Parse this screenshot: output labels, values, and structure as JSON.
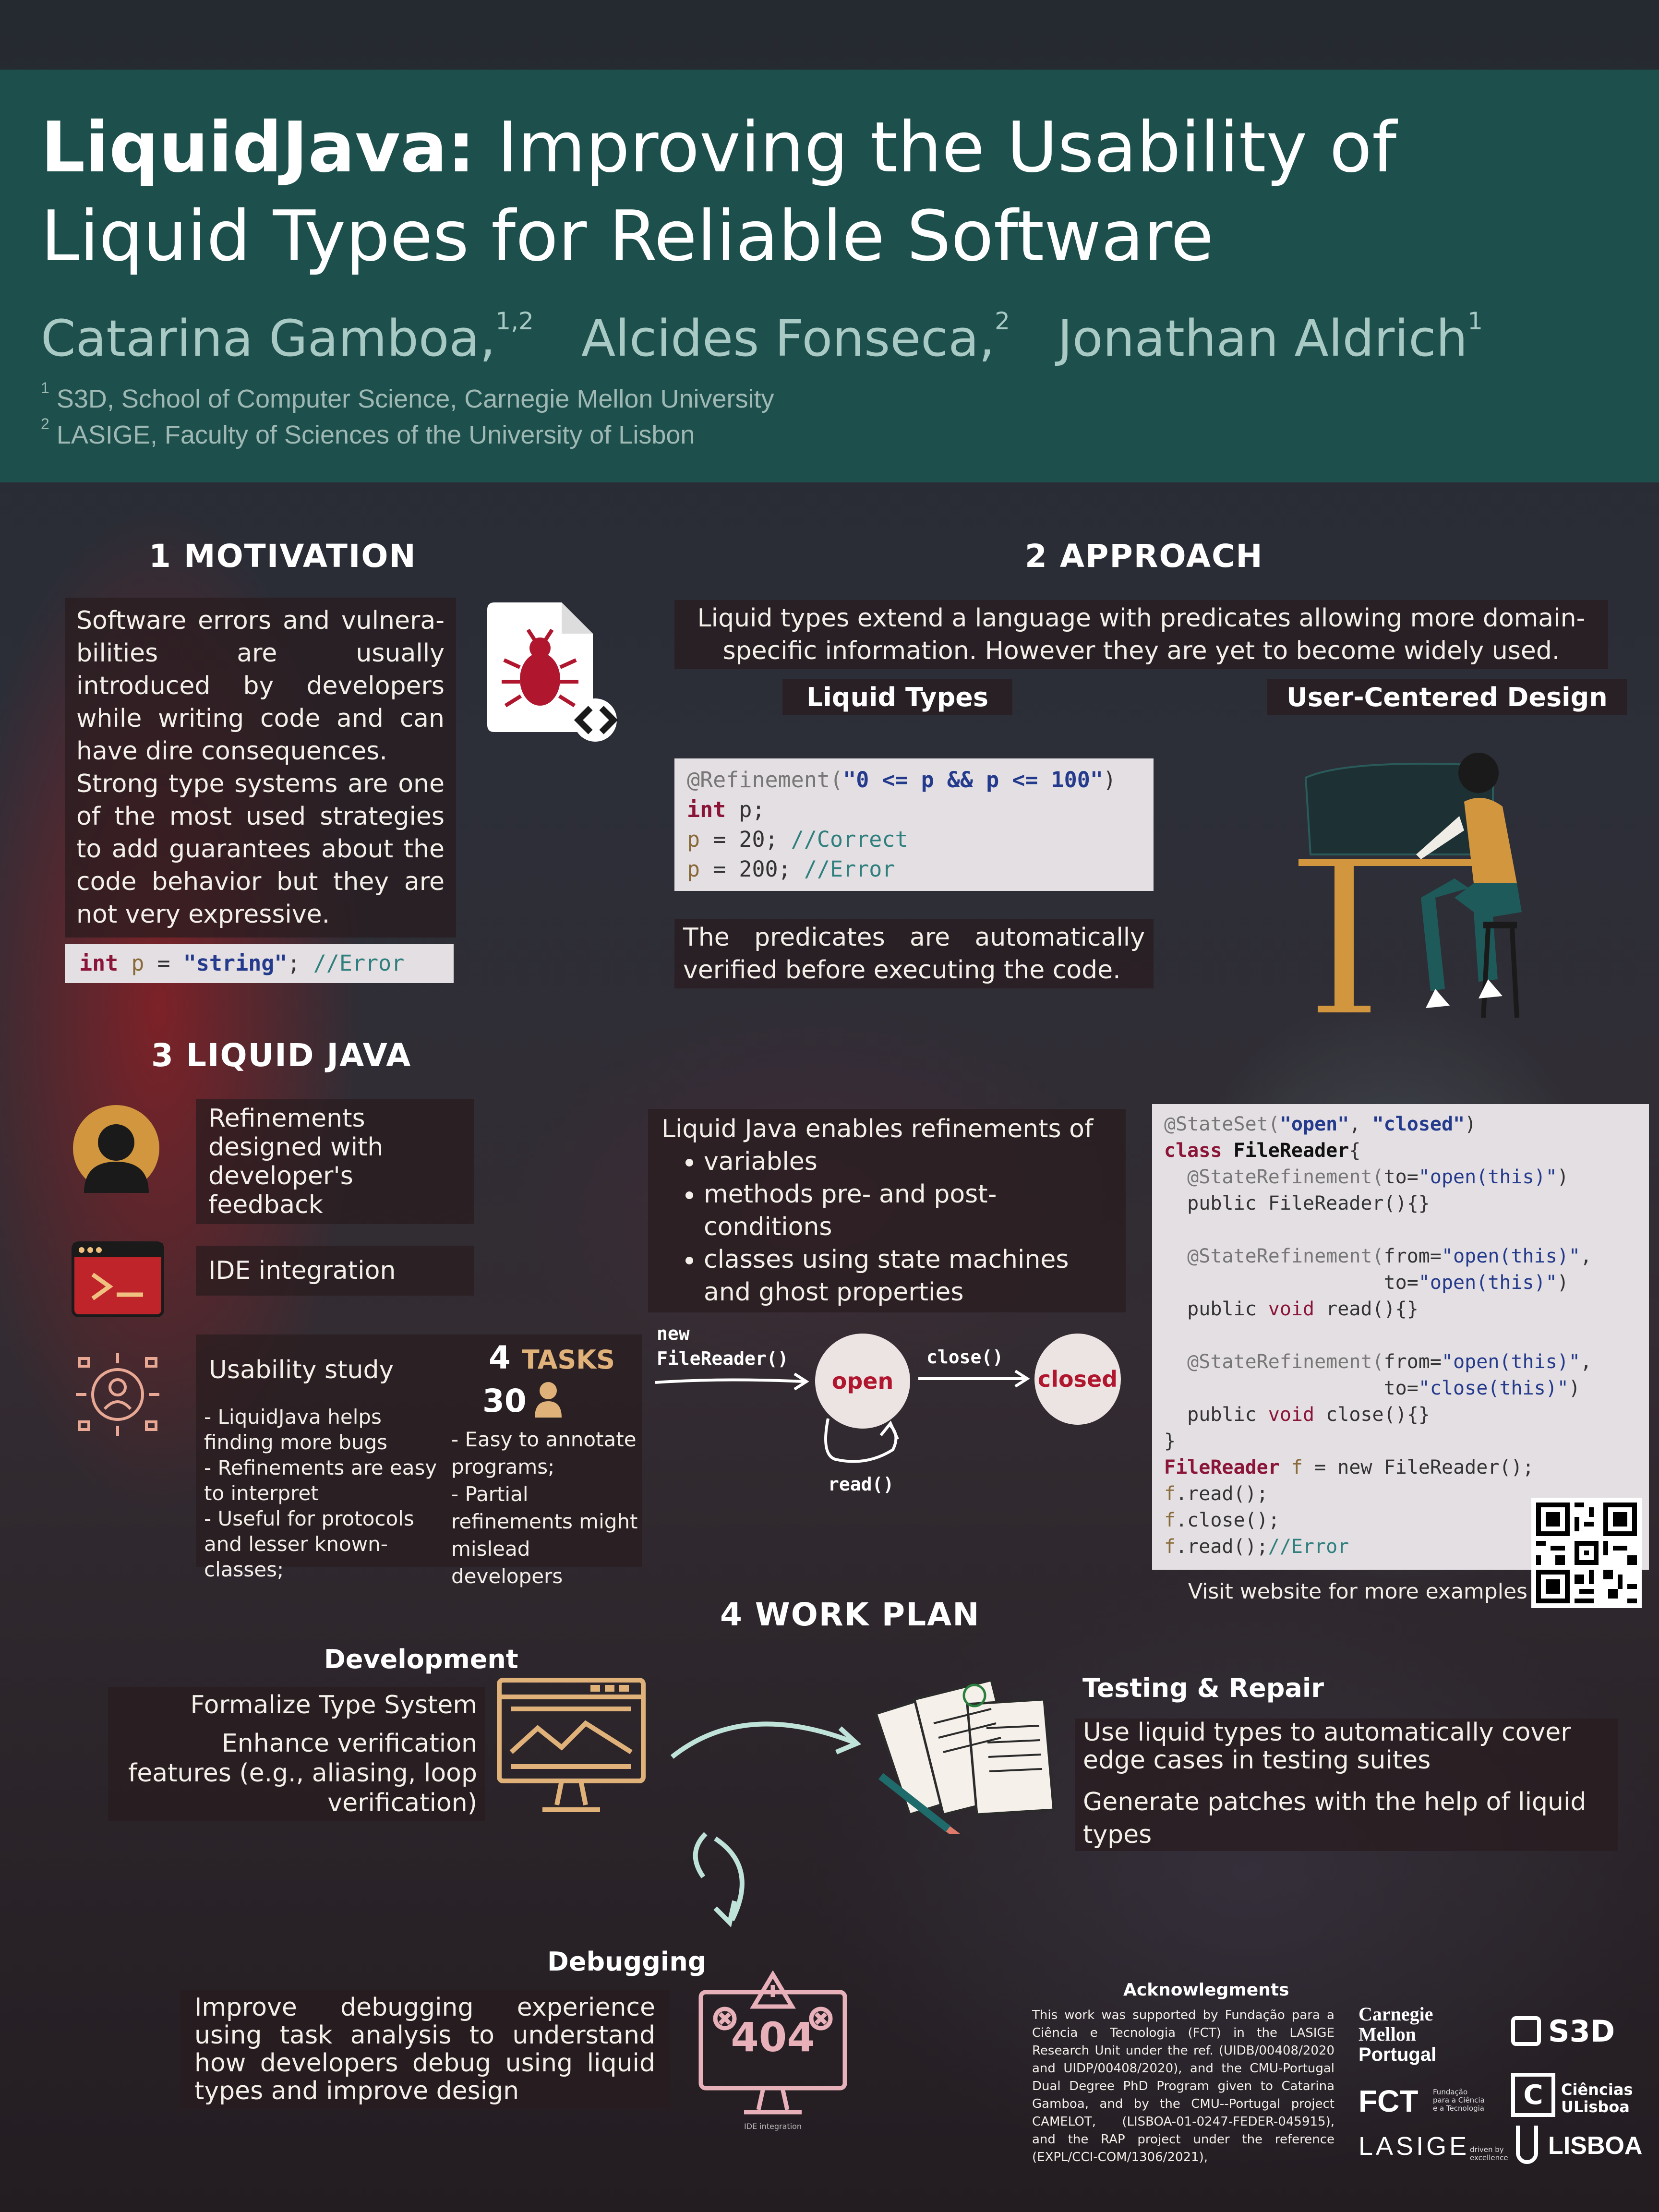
{
  "header": {
    "title_bold": "LiquidJava:",
    "title_rest": " Improving the Usability of Liquid Types for Reliable Software",
    "authors": [
      {
        "name": "Catarina Gamboa,",
        "sup": "1,2"
      },
      {
        "name": "Alcides Fonseca,",
        "sup": "2"
      },
      {
        "name": "Jonathan Aldrich",
        "sup": "1"
      }
    ],
    "affiliations": [
      {
        "sup": "1",
        "text": "S3D, School of Computer Science, Carnegie Mellon University"
      },
      {
        "sup": "2",
        "text": "LASIGE, Faculty of Sciences of the University of Lisbon"
      }
    ]
  },
  "motivation": {
    "heading": "1 MOTIVATION",
    "p1": "Software errors and vulnera-bilities are usually introduced by developers while writing code and can have dire consequences.",
    "p2": "Strong type systems are one of the most used strategies to add guarantees about the code behavior but they are not very expressive.",
    "code": {
      "kw": "int",
      "var": "p",
      "eq": " = ",
      "str": "\"string\"",
      "semi": "; ",
      "comment": "//Error"
    }
  },
  "approach": {
    "heading": "2 APPROACH",
    "intro": "Liquid types extend a language with predicates allowing more domain-specific information. However they are yet to become widely used.",
    "sub_left": "Liquid Types",
    "sub_right": "User-Centered Design",
    "code": {
      "ann": "@Refinement(",
      "pred": "\"0 <= p && p <= 100\"",
      "close": ")",
      "l2_kw": "int",
      "l2_rest": " p;",
      "l3_var": "p",
      "l3_rest": " = 20; ",
      "l3_cm": "//Correct",
      "l4_var": "p",
      "l4_rest": " = 200; ",
      "l4_cm": "//Error"
    },
    "predicates_text": "The predicates are automatically verified before executing the code."
  },
  "liquidjava": {
    "heading": "3 LIQUID JAVA",
    "feature1": "Refinements designed with developer's feedback",
    "feature2": "IDE integration",
    "feature3": "Usability study",
    "tasks_num": "4",
    "tasks_label": "TASKS",
    "participants_num": "30",
    "findings_left": [
      "- LiquidJava helps finding   more bugs",
      "- Refinements are easy to interpret",
      "- Useful for protocols and lesser known-classes;"
    ],
    "findings_right": [
      "- Easy to annotate programs;",
      "- Partial refinements might mislead developers"
    ],
    "enables_title": "Liquid Java enables refinements of",
    "enables_items": [
      "variables",
      "methods pre- and post- conditions",
      "classes using state machines and ghost properties"
    ],
    "sm": {
      "init_label_1": "new",
      "init_label_2": "FileReader()",
      "state_open": "open",
      "state_closed": "closed",
      "edge_close": "close()",
      "edge_read": "read()"
    },
    "code_lines": [
      [
        {
          "c": "ann",
          "t": "@StateSet("
        },
        {
          "c": "str",
          "t": "\"open\""
        },
        {
          "c": "",
          "t": ", "
        },
        {
          "c": "str",
          "t": "\"closed\""
        },
        {
          "c": "",
          "t": ")"
        }
      ],
      [
        {
          "c": "kw",
          "t": "class "
        },
        {
          "c": "b",
          "t": "FileReader"
        },
        {
          "c": "",
          "t": "{"
        }
      ],
      [
        {
          "c": "ann",
          "t": "  @StateRefinement("
        },
        {
          "c": "",
          "t": "to="
        },
        {
          "c": "s2",
          "t": "\"open(this)\""
        },
        {
          "c": "",
          "t": ")"
        }
      ],
      [
        {
          "c": "",
          "t": "  public FileReader(){}"
        }
      ],
      [
        {
          "c": "",
          "t": " "
        }
      ],
      [
        {
          "c": "ann",
          "t": "  @StateRefinement("
        },
        {
          "c": "",
          "t": "from="
        },
        {
          "c": "s2",
          "t": "\"open(this)\""
        },
        {
          "c": "",
          "t": ","
        }
      ],
      [
        {
          "c": "",
          "t": "                   to="
        },
        {
          "c": "s2",
          "t": "\"open(this)\""
        },
        {
          "c": "",
          "t": ")"
        }
      ],
      [
        {
          "c": "",
          "t": "  public "
        },
        {
          "c": "kw2",
          "t": "void"
        },
        {
          "c": "",
          "t": " read(){}"
        }
      ],
      [
        {
          "c": "",
          "t": " "
        }
      ],
      [
        {
          "c": "ann",
          "t": "  @StateRefinement("
        },
        {
          "c": "",
          "t": "from="
        },
        {
          "c": "s2",
          "t": "\"open(this)\""
        },
        {
          "c": "",
          "t": ","
        }
      ],
      [
        {
          "c": "",
          "t": "                   to="
        },
        {
          "c": "s2",
          "t": "\"close(this)\""
        },
        {
          "c": "",
          "t": ")"
        }
      ],
      [
        {
          "c": "",
          "t": "  public "
        },
        {
          "c": "kw2",
          "t": "void"
        },
        {
          "c": "",
          "t": " close(){}"
        }
      ],
      [
        {
          "c": "",
          "t": "}"
        }
      ],
      [
        {
          "c": "kw",
          "t": "FileReader "
        },
        {
          "c": "var",
          "t": "f"
        },
        {
          "c": "",
          "t": " = new FileReader();"
        }
      ],
      [
        {
          "c": "var",
          "t": "f"
        },
        {
          "c": "",
          "t": ".read();"
        }
      ],
      [
        {
          "c": "var",
          "t": "f"
        },
        {
          "c": "",
          "t": ".close();"
        }
      ],
      [
        {
          "c": "var",
          "t": "f"
        },
        {
          "c": "",
          "t": ".read();"
        },
        {
          "c": "cm",
          "t": "//Error"
        }
      ]
    ],
    "visit": "Visit website for more examples"
  },
  "workplan": {
    "heading": "4 WORK PLAN",
    "dev_title": "Development",
    "dev_items": [
      "Formalize Type System",
      "Enhance verification features (e.g., aliasing, loop verification)"
    ],
    "test_title": "Testing & Repair",
    "test_items": [
      "Use liquid types to automatically cover edge cases in testing suites",
      "Generate patches with the help of liquid types"
    ],
    "debug_title": "Debugging",
    "debug_text": "Improve debugging experience using task analysis to understand how developers debug using liquid types and improve design",
    "ide_label": "IDE integration",
    "error_code": "404"
  },
  "ack": {
    "title": "Acknowlegments",
    "text": "This work was supported by Fundação para a Ciência e Tecnologia (FCT) in the LASIGE Research Unit under the ref. (UIDB/00408/2020 and UIDP/00408/2020), and the CMU-Portugal Dual Degree PhD Program given to Catarina Gamboa, and by the CMU--Portugal project CAMELOT, (LISBOA-01-0247-FEDER-045915), and the RAP project under the reference (EXPL/CCI-COM/1306/2021),"
  },
  "logos": {
    "cmu_1": "Carnegie",
    "cmu_2": "Mellon",
    "cmu_3": "Portugal",
    "s3d": "S3D",
    "fct": "FCT",
    "fct_sub": "Fundação para a Ciência e a Tecnologia",
    "ciencias_1": "Ciências",
    "ciencias_2": "ULisboa",
    "lasige": "LASIGE",
    "lasige_sub": "driven by excellence",
    "lisboa": "LISBOA"
  },
  "colors": {
    "header_bg": "#1c544e",
    "accent_red": "#b0172f",
    "tasks_gold": "#e0b27a"
  }
}
